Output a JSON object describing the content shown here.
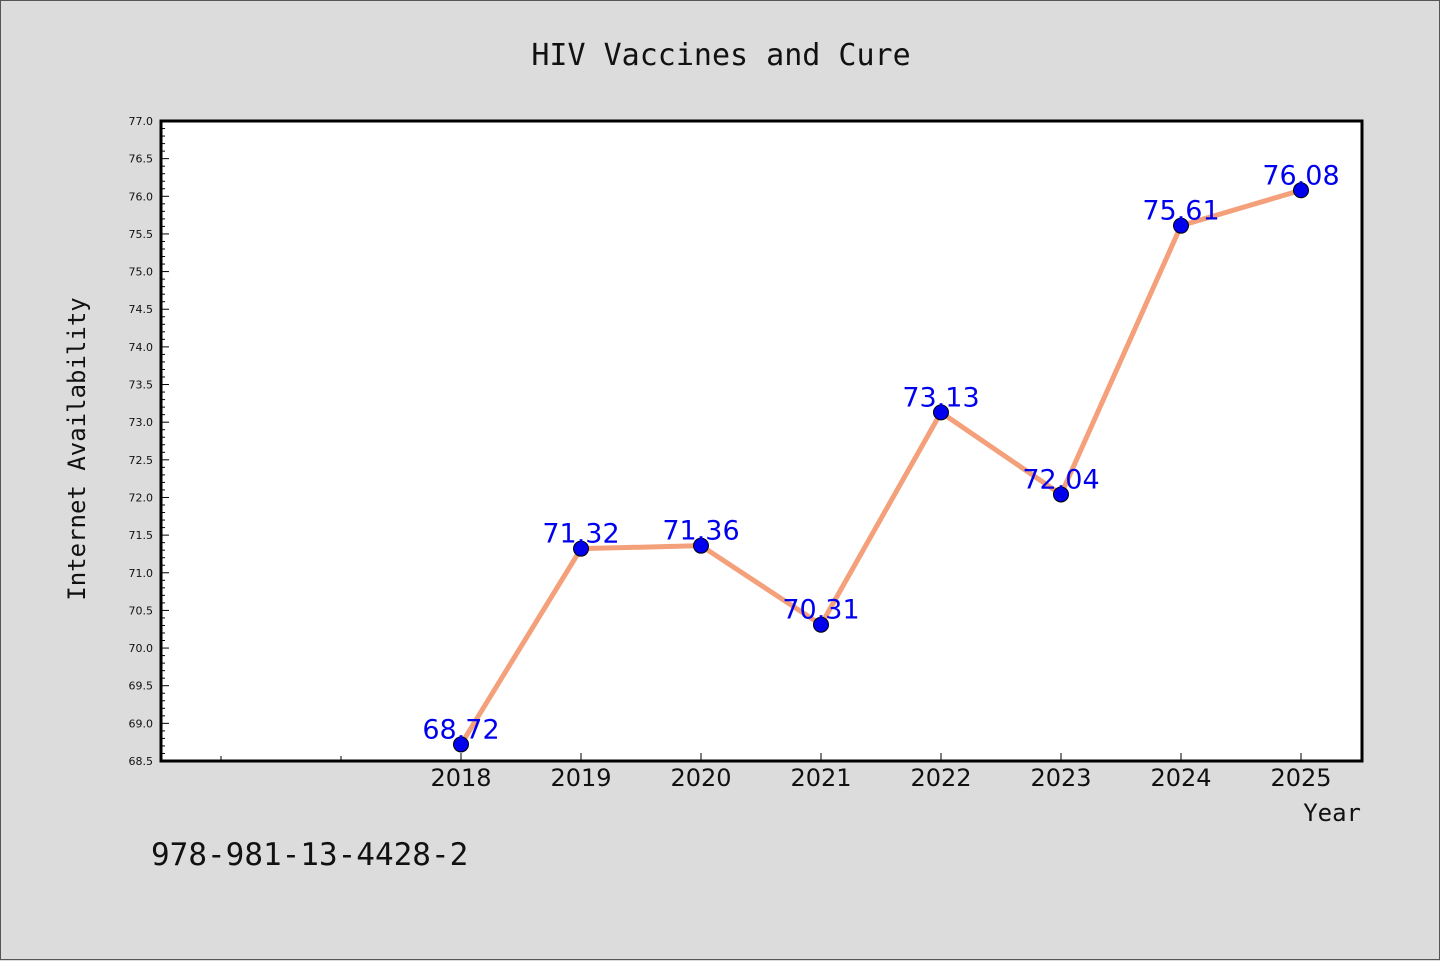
{
  "chart_data": {
    "type": "line",
    "title": "HIV Vaccines and Cure",
    "xlabel": "Year",
    "ylabel": "Internet Availability",
    "x": [
      "2018",
      "2019",
      "2020",
      "2021",
      "2022",
      "2023",
      "2024",
      "2025"
    ],
    "series": [
      {
        "values": [
          68.72,
          71.32,
          71.36,
          70.31,
          73.13,
          72.04,
          75.61,
          76.08
        ],
        "line_color": "#f4a07a",
        "marker_color": "#0000ee"
      }
    ],
    "data_labels": [
      "68.72",
      "71.32",
      "71.36",
      "70.31",
      "73.13",
      "72.04",
      "75.61",
      "76.08"
    ],
    "ylim": [
      68.5,
      77.0
    ],
    "yticks": [
      "68.5",
      "69.0",
      "69.5",
      "70.0",
      "70.5",
      "71.0",
      "71.5",
      "72.0",
      "72.5",
      "73.0",
      "73.5",
      "74.0",
      "74.5",
      "75.0",
      "75.5",
      "76.0",
      "76.5",
      "77.0"
    ],
    "grid": false,
    "legend": "none"
  },
  "footer": {
    "identifier": "978-981-13-4428-2"
  }
}
